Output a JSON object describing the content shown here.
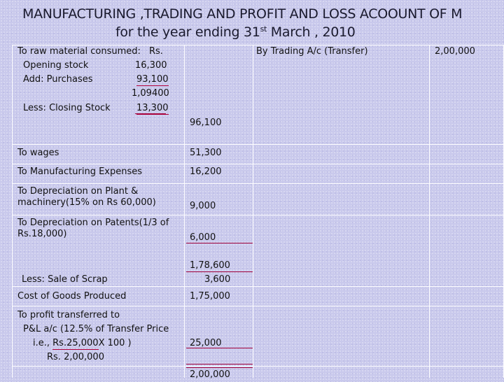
{
  "title": {
    "line1": "MANUFACTURING ,TRADING AND PROFIT AND LOSS ACOOUNT OF M",
    "line2_prefix": "for the year ending 31",
    "line2_sup": "st",
    "line2_suffix": " March , 2010"
  },
  "raw_material": {
    "header": "To raw material consumed:",
    "currency": "Rs.",
    "opening_label": "Opening stock",
    "opening_value": "16,300",
    "purchases_label": "Add: Purchases",
    "purchases_value": "93,100",
    "subtotal": "1,09400",
    "closing_label": "Less: Closing Stock",
    "closing_value": "13,300",
    "consumed": "96,100"
  },
  "credit": {
    "label": "By Trading A/c (Transfer)",
    "amount": "2,00,000"
  },
  "wages": {
    "label": "To wages",
    "amount": "51,300"
  },
  "mfg": {
    "label": "To Manufacturing Expenses",
    "amount": "16,200"
  },
  "dep_plant": {
    "line1": "To Depreciation on Plant &",
    "line2": "machinery(15% on Rs 60,000)",
    "amount": "9,000"
  },
  "dep_patents": {
    "line1": "To Depreciation on Patents(1/3 of",
    "line2": "Rs.18,000)",
    "amount": "6,000"
  },
  "subtotal_amount": "1,78,600",
  "scrap": {
    "label": "Less: Sale of Scrap",
    "amount": "3,600"
  },
  "cogp": {
    "label": "Cost of Goods Produced",
    "amount": "1,75,000"
  },
  "profit": {
    "line1": "To profit transferred to",
    "line2": "P&L a/c (12.5% of Transfer Price",
    "line3_prefix": "i.e., ",
    "line3_ul": "Rs.25,000 ",
    "line3_suffix": "X 100  )",
    "line4": "Rs. 2,00,000",
    "amount": "25,000"
  },
  "total": "2,00,000"
}
